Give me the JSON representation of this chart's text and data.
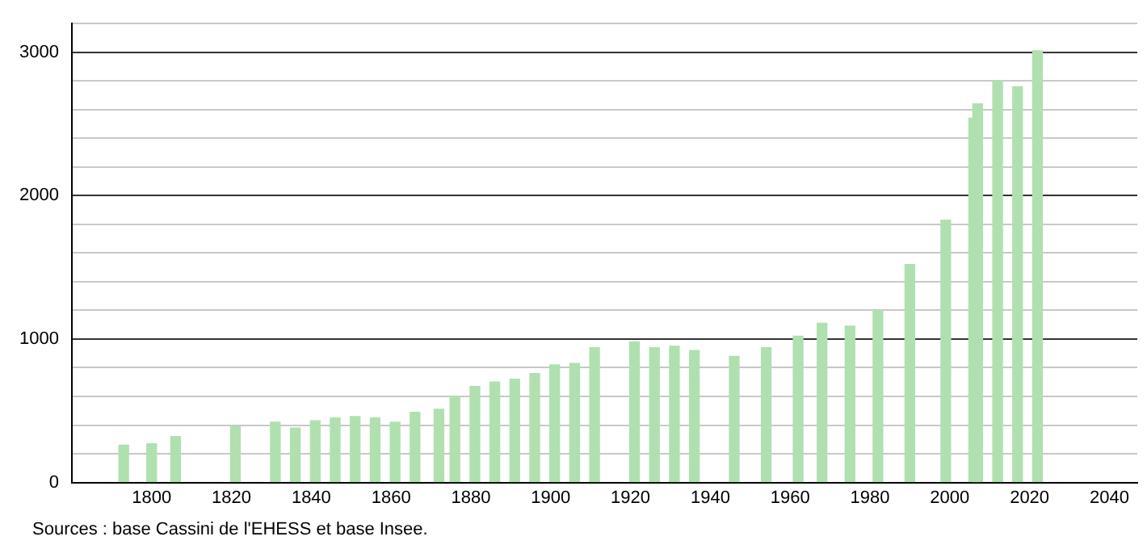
{
  "chart_data": {
    "type": "bar",
    "x": [
      1793,
      1800,
      1806,
      1821,
      1831,
      1836,
      1841,
      1846,
      1851,
      1856,
      1861,
      1866,
      1872,
      1876,
      1881,
      1886,
      1891,
      1896,
      1901,
      1906,
      1911,
      1921,
      1926,
      1931,
      1936,
      1946,
      1954,
      1962,
      1968,
      1975,
      1982,
      1990,
      1999,
      2006,
      2007,
      2012,
      2017,
      2022
    ],
    "values": [
      260,
      270,
      320,
      390,
      420,
      380,
      430,
      450,
      460,
      450,
      420,
      490,
      510,
      600,
      670,
      700,
      720,
      760,
      820,
      830,
      940,
      980,
      940,
      950,
      920,
      880,
      940,
      1020,
      1110,
      1090,
      1200,
      1520,
      1830,
      2540,
      2640,
      2800,
      2760,
      3010
    ],
    "color": "#b0e0b0",
    "xlim": [
      1780,
      2047
    ],
    "xticks": [
      1800,
      1820,
      1840,
      1860,
      1880,
      1900,
      1920,
      1940,
      1960,
      1980,
      2000,
      2020,
      2040
    ],
    "ylim": [
      0,
      3200
    ],
    "yticks": [
      0,
      {
        "value": 200,
        "label": null
      },
      {
        "value": 400,
        "label": null
      },
      {
        "value": 600,
        "label": null
      },
      {
        "value": 800,
        "label": null
      },
      1000,
      {
        "value": 1200,
        "label": null
      },
      {
        "value": 1400,
        "label": null
      },
      {
        "value": 1600,
        "label": null
      },
      {
        "value": 1800,
        "label": null
      },
      2000,
      {
        "value": 2200,
        "label": null
      },
      {
        "value": 2400,
        "label": null
      },
      {
        "value": 2600,
        "label": null
      },
      {
        "value": 2800,
        "label": null
      },
      3000,
      {
        "value": 3200,
        "label": null
      }
    ],
    "grid": "y",
    "legend": false,
    "annotations": [
      "Sources : base Cassini de l'EHESS et base Insee."
    ]
  }
}
